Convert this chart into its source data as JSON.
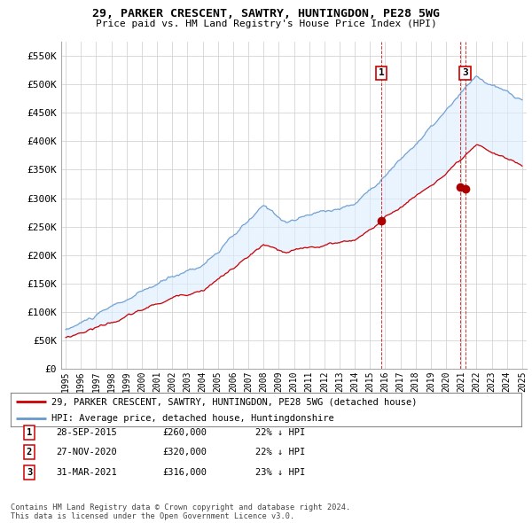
{
  "title": "29, PARKER CRESCENT, SAWTRY, HUNTINGDON, PE28 5WG",
  "subtitle": "Price paid vs. HM Land Registry's House Price Index (HPI)",
  "ylabel_ticks": [
    "£0",
    "£50K",
    "£100K",
    "£150K",
    "£200K",
    "£250K",
    "£300K",
    "£350K",
    "£400K",
    "£450K",
    "£500K",
    "£550K"
  ],
  "ytick_vals": [
    0,
    50000,
    100000,
    150000,
    200000,
    250000,
    300000,
    350000,
    400000,
    450000,
    500000,
    550000
  ],
  "ylim": [
    0,
    575000
  ],
  "xlim_start": 1994.7,
  "xlim_end": 2025.3,
  "sale1": {
    "date_num": 2015.74,
    "price": 260000,
    "label": "1"
  },
  "sale2": {
    "date_num": 2020.9,
    "price": 320000,
    "label": "2"
  },
  "sale3": {
    "date_num": 2021.25,
    "price": 316000,
    "label": "3"
  },
  "red_color": "#cc0000",
  "blue_color": "#6699cc",
  "fill_color": "#ddeeff",
  "marker_color": "#aa0000",
  "vline_color": "#cc0000",
  "background_color": "#ffffff",
  "grid_color": "#cccccc",
  "legend_label_red": "29, PARKER CRESCENT, SAWTRY, HUNTINGDON, PE28 5WG (detached house)",
  "legend_label_blue": "HPI: Average price, detached house, Huntingdonshire",
  "table_rows": [
    {
      "num": "1",
      "date": "28-SEP-2015",
      "price": "£260,000",
      "pct": "22% ↓ HPI"
    },
    {
      "num": "2",
      "date": "27-NOV-2020",
      "price": "£320,000",
      "pct": "22% ↓ HPI"
    },
    {
      "num": "3",
      "date": "31-MAR-2021",
      "price": "£316,000",
      "pct": "23% ↓ HPI"
    }
  ],
  "footer": "Contains HM Land Registry data © Crown copyright and database right 2024.\nThis data is licensed under the Open Government Licence v3.0.",
  "xtick_years": [
    1995,
    1996,
    1997,
    1998,
    1999,
    2000,
    2001,
    2002,
    2003,
    2004,
    2005,
    2006,
    2007,
    2008,
    2009,
    2010,
    2011,
    2012,
    2013,
    2014,
    2015,
    2016,
    2017,
    2018,
    2019,
    2020,
    2021,
    2022,
    2023,
    2024,
    2025
  ]
}
